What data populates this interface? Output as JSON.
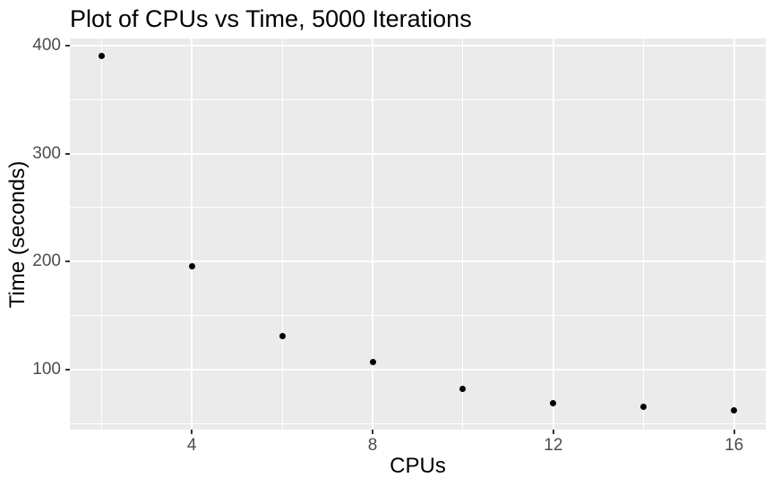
{
  "chart_data": {
    "type": "scatter",
    "title": "Plot of CPUs vs Time, 5000 Iterations",
    "xlabel": "CPUs",
    "ylabel": "Time (seconds)",
    "points": [
      {
        "x": 2,
        "y": 390
      },
      {
        "x": 4,
        "y": 196
      },
      {
        "x": 6,
        "y": 131
      },
      {
        "x": 8,
        "y": 107
      },
      {
        "x": 10,
        "y": 82
      },
      {
        "x": 12,
        "y": 69
      },
      {
        "x": 14,
        "y": 66
      },
      {
        "x": 16,
        "y": 62
      }
    ],
    "x_major_ticks": [
      4,
      8,
      12,
      16
    ],
    "x_minor_ticks": [
      2,
      6,
      10,
      14
    ],
    "y_major_ticks": [
      100,
      200,
      300,
      400
    ],
    "y_minor_ticks": [
      50,
      150,
      250,
      350
    ],
    "xlim": [
      1.3,
      16.7
    ],
    "ylim": [
      44.5,
      406.5
    ],
    "grid": true,
    "legend_position": "none",
    "style": {
      "point_color": "#000000",
      "panel_bg": "#EBEBEB",
      "grid_color": "#FFFFFF",
      "tick_mark_color": "#333333",
      "tick_label_color": "#4D4D4D",
      "axis_title_color": "#000000",
      "title_color": "#000000"
    }
  }
}
